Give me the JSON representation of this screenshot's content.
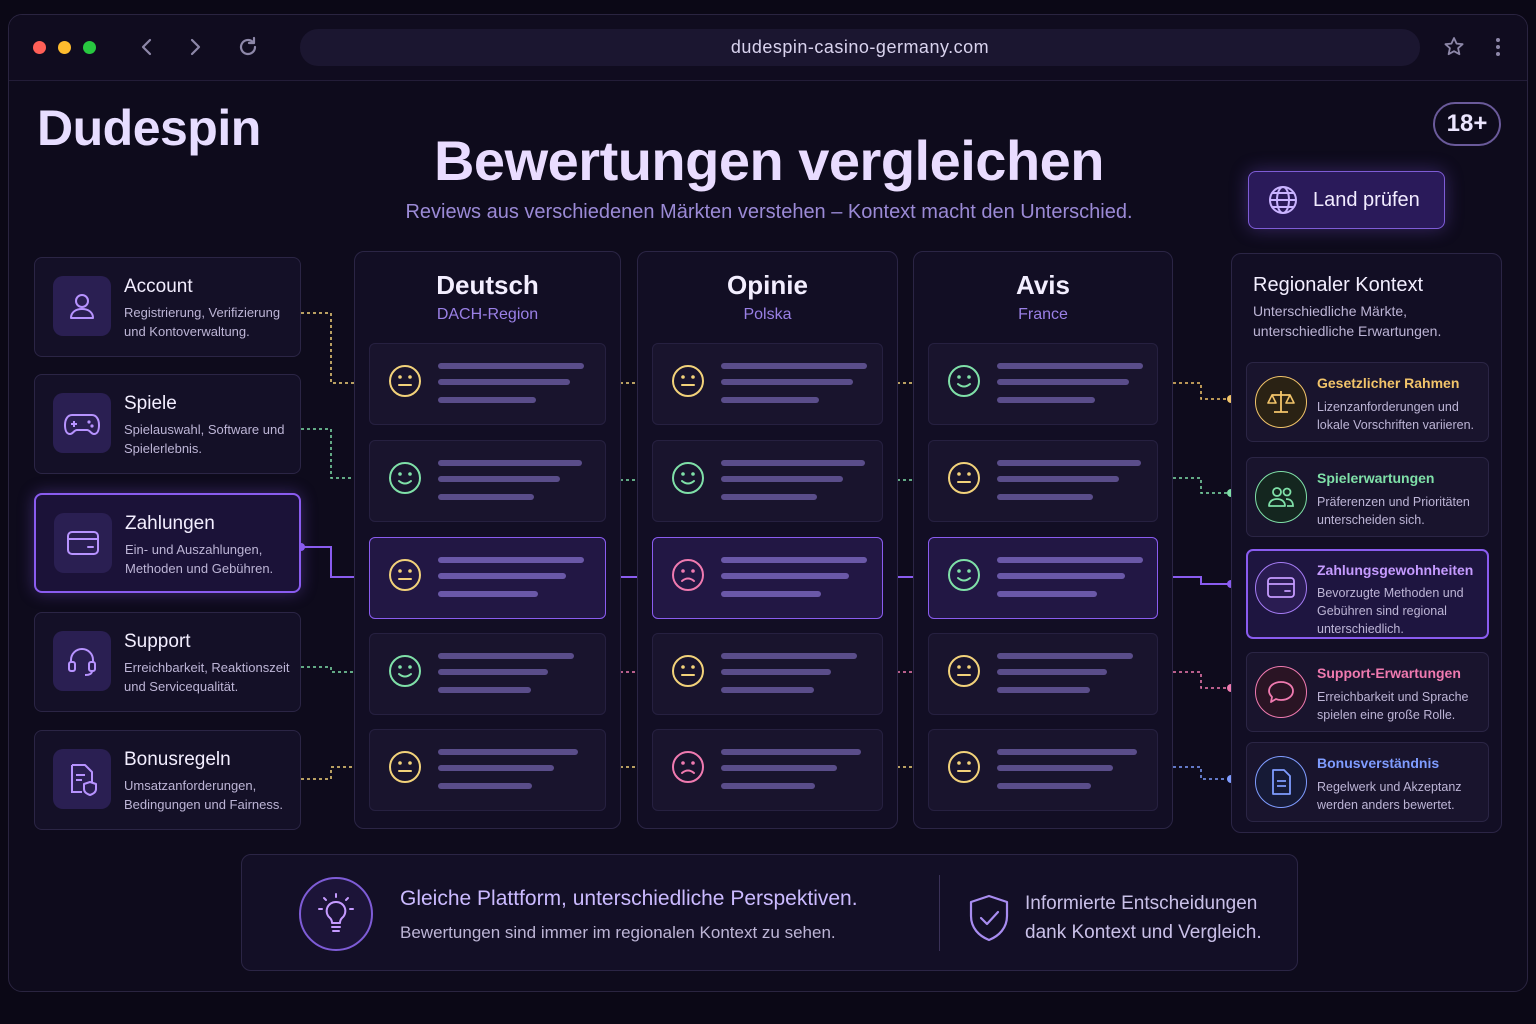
{
  "browser": {
    "url": "dudespin-casino-germany.com"
  },
  "brand": "Dudespin",
  "age_badge": "18+",
  "title": "Bewertungen vergleichen",
  "subtitle": "Reviews aus verschiedenen Märkten verstehen – Kontext macht den Unterschied.",
  "land_button": {
    "label": "Land prüfen",
    "icon": "globe-icon"
  },
  "categories": [
    {
      "title": "Account",
      "desc": "Registrierung, Verifizierung und Kontoverwaltung.",
      "icon": "user-icon",
      "active": false
    },
    {
      "title": "Spiele",
      "desc": "Spielauswahl, Software und Spielerlebnis.",
      "icon": "gamepad-icon",
      "active": false
    },
    {
      "title": "Zahlungen",
      "desc": "Ein- und Auszahlungen, Methoden und Gebühren.",
      "icon": "credit-card-icon",
      "active": true
    },
    {
      "title": "Support",
      "desc": "Erreichbarkeit, Reaktionszeit und Servicequalität.",
      "icon": "headset-icon",
      "active": false
    },
    {
      "title": "Bonusregeln",
      "desc": "Umsatzanforderungen, Bedingungen und Fairness.",
      "icon": "document-shield-icon",
      "active": false
    }
  ],
  "markets": [
    {
      "name": "Deutsch",
      "region": "DACH-Region",
      "ratings": [
        "neutral",
        "positive",
        "neutral",
        "positive",
        "neutral"
      ]
    },
    {
      "name": "Opinie",
      "region": "Polska",
      "ratings": [
        "neutral",
        "positive",
        "negative",
        "neutral",
        "negative"
      ]
    },
    {
      "name": "Avis",
      "region": "France",
      "ratings": [
        "positive",
        "neutral",
        "positive",
        "neutral",
        "neutral"
      ]
    }
  ],
  "context": {
    "title": "Regionaler Kontext",
    "desc": "Unterschiedliche Märkte, unterschiedliche Erwartungen.",
    "items": [
      {
        "title": "Gesetzlicher Rahmen",
        "desc": "Lizenzanforderungen und lokale Vorschriften variieren.",
        "icon": "scales-icon",
        "color": "#f2c46a"
      },
      {
        "title": "Spielerwartungen",
        "desc": "Präferenzen und Prioritäten unterscheiden sich.",
        "icon": "users-icon",
        "color": "#7fe0a8"
      },
      {
        "title": "Zahlungsgewohnheiten",
        "desc": "Bevorzugte Methoden und Gebühren sind regional unterschiedlich.",
        "icon": "credit-card-icon",
        "color": "#c59bff"
      },
      {
        "title": "Support-Erwartungen",
        "desc": "Erreichbarkeit und Sprache spielen eine große Rolle.",
        "icon": "chat-bubble-icon",
        "color": "#f07ab0"
      },
      {
        "title": "Bonusverständnis",
        "desc": "Regelwerk und Akzeptanz werden anders bewertet.",
        "icon": "document-icon",
        "color": "#7f9cff"
      }
    ]
  },
  "footer": {
    "title": "Gleiche Plattform, unterschiedliche Perspektiven.",
    "text": "Bewertungen sind immer im regionalen Kontext zu sehen.",
    "right_line1": "Informierte Entscheidungen",
    "right_line2": "dank Kontext und Vergleich."
  },
  "colors": {
    "positive": "#7fe0a8",
    "neutral": "#f2d27a",
    "negative": "#f07ab0",
    "accent": "#8a5cf0"
  }
}
